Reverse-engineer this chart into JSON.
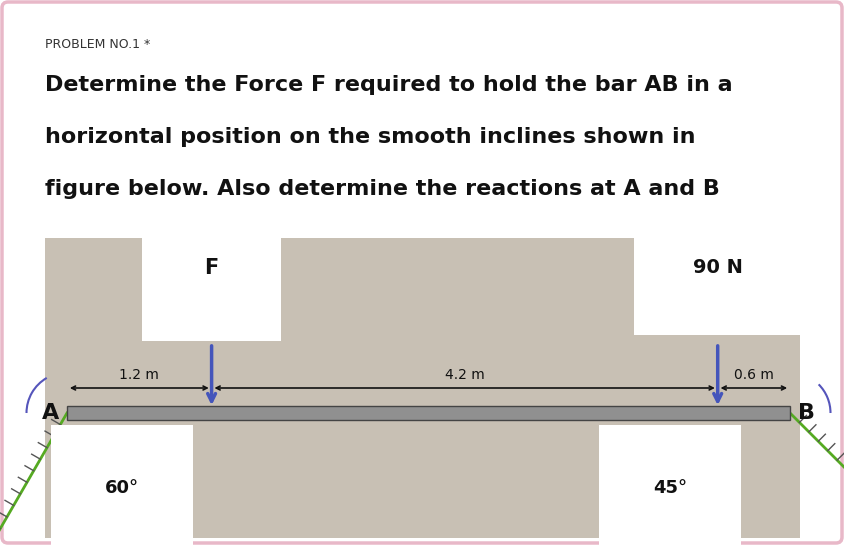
{
  "background_color": "#ffffff",
  "outer_border_color": "#e8b8c8",
  "problem_label": "PROBLEM NO.1 *",
  "problem_label_color": "#333333",
  "problem_label_fontsize": 9,
  "title_lines": [
    "Determine the Force F required to hold the bar AB in a",
    "horizontal position on the smooth inclines shown in",
    "figure below. Also determine the reactions at A and B"
  ],
  "title_fontsize": 16,
  "title_color": "#111111",
  "diagram_bg_color": "#c8c0b4",
  "bar_color": "#888888",
  "label_A": "A",
  "label_B": "B",
  "label_fontsize": 16,
  "F_label": "F",
  "force_90N_label": "90 N",
  "dist_1p2": "1.2 m",
  "dist_4p2": "4.2 m",
  "dist_0p6": "0.6 m",
  "angle_60_label": "60°",
  "angle_45_label": "45°",
  "arrow_color": "#4455bb",
  "incline_color": "#55aa22",
  "hatch_color": "#555555",
  "dim_color": "#111111"
}
